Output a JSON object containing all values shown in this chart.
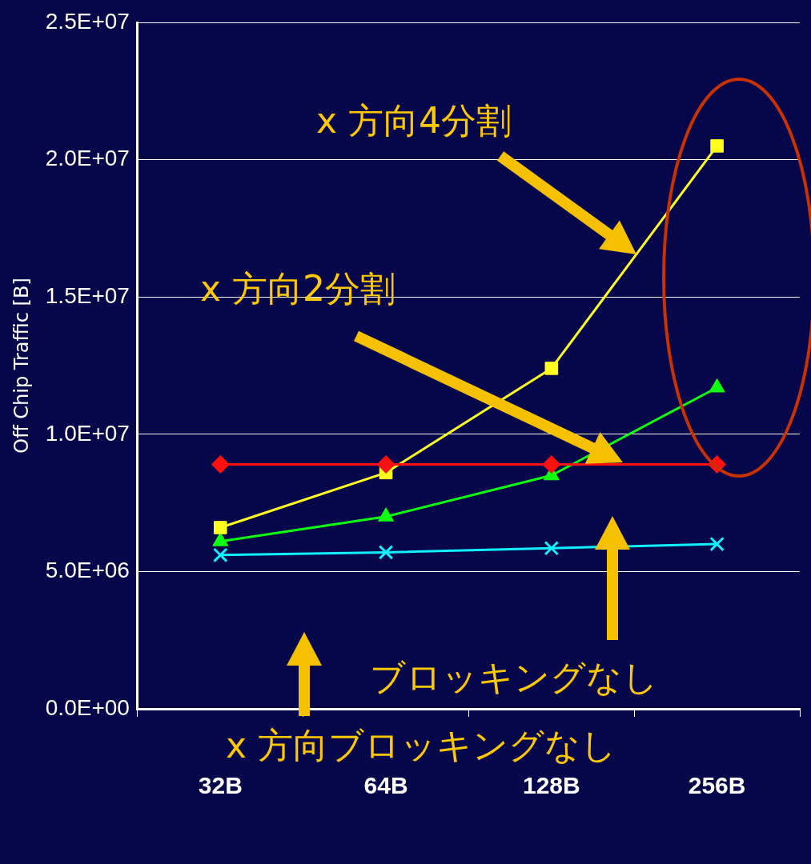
{
  "chart_data": {
    "type": "line",
    "ylabel": "Off Chip Traffic [B]",
    "categories": [
      "32B",
      "64B",
      "128B",
      "256B"
    ],
    "series": [
      {
        "color": "#ff1010",
        "marker": "diamond",
        "values": [
          8900000,
          8900000,
          8900000,
          8900000
        ]
      },
      {
        "color": "#ffff20",
        "marker": "square",
        "values": [
          6600000,
          8600000,
          12400000,
          20500000
        ]
      },
      {
        "color": "#10ff10",
        "marker": "triangle",
        "values": [
          6100000,
          7000000,
          8500000,
          11700000
        ]
      },
      {
        "color": "#10f0ff",
        "marker": "cross",
        "values": [
          5600000,
          5700000,
          5850000,
          6000000
        ]
      }
    ],
    "ylim": [
      0,
      25000000
    ],
    "yticks": [
      {
        "value": 0,
        "label": "0.0E+00"
      },
      {
        "value": 5000000,
        "label": "5.0E+06"
      },
      {
        "value": 10000000,
        "label": "1.0E+07"
      },
      {
        "value": 15000000,
        "label": "1.5E+07"
      },
      {
        "value": 20000000,
        "label": "2.0E+07"
      },
      {
        "value": 25000000,
        "label": "2.5E+07"
      }
    ],
    "grid": "y",
    "legend": false,
    "annotations": [
      "x 方向4分割",
      "x 方向2分割",
      "ブロッキングなし",
      "x 方向ブロッキングなし"
    ]
  }
}
